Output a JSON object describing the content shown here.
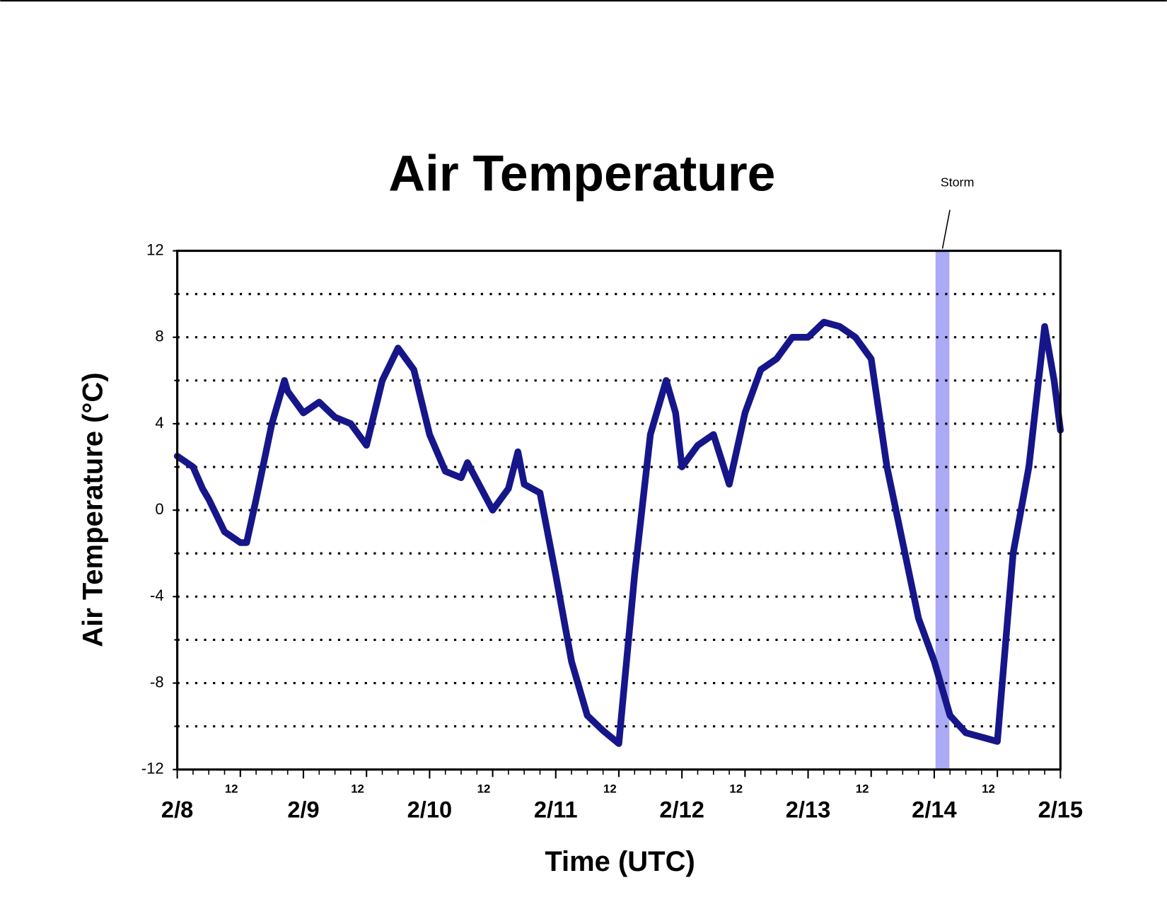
{
  "chart_data": {
    "type": "line",
    "title": "Air Temperature",
    "xlabel": "Time (UTC)",
    "ylabel": "Air Temperature (°C)",
    "color": "#16168a",
    "x": [
      0,
      0.125,
      0.2,
      0.25,
      0.375,
      0.5,
      0.55,
      0.625,
      0.75,
      0.85,
      0.875,
      1.0,
      1.125,
      1.25,
      1.375,
      1.5,
      1.625,
      1.75,
      1.875,
      2.0,
      2.125,
      2.25,
      2.3,
      2.5,
      2.625,
      2.7,
      2.75,
      2.875,
      3.0,
      3.125,
      3.25,
      3.375,
      3.5,
      3.625,
      3.75,
      3.875,
      3.95,
      4.0,
      4.125,
      4.25,
      4.375,
      4.5,
      4.625,
      4.75,
      4.875,
      5.0,
      5.125,
      5.25,
      5.375,
      5.5,
      5.625,
      5.75,
      5.875,
      6.0,
      6.125,
      6.25,
      6.375,
      6.5,
      6.625,
      6.75,
      6.875,
      6.95,
      7.0
    ],
    "values": [
      2.5,
      2.0,
      1.0,
      0.5,
      -1.0,
      -1.5,
      -1.5,
      0.5,
      4,
      6,
      5.5,
      4.5,
      5,
      4.3,
      4,
      3,
      6,
      7.5,
      6.5,
      3.5,
      1.8,
      1.5,
      2.2,
      0,
      1.0,
      2.7,
      1.2,
      0.8,
      -3,
      -7,
      -9.5,
      -10.2,
      -10.8,
      -3,
      3.5,
      6,
      4.5,
      2,
      3,
      3.5,
      1.2,
      4.5,
      6.5,
      7,
      8,
      8,
      8.7,
      8.5,
      8,
      7,
      2,
      -1.5,
      -5,
      -7,
      -9.5,
      -10.3,
      -10.5,
      -10.7,
      -2,
      2,
      8.5,
      6,
      3.7
    ],
    "xlim": [
      0,
      7
    ],
    "xticks": [
      {
        "value": 0,
        "label": "2/8"
      },
      {
        "value": 1,
        "label": "2/9"
      },
      {
        "value": 2,
        "label": "2/10"
      },
      {
        "value": 3,
        "label": "2/11"
      },
      {
        "value": 4,
        "label": "2/12"
      },
      {
        "value": 5,
        "label": "2/13"
      },
      {
        "value": 6,
        "label": "2/14"
      },
      {
        "value": 7,
        "label": "2/15"
      }
    ],
    "xticks_noon": [
      {
        "value": 0.5,
        "label": "12"
      },
      {
        "value": 1.5,
        "label": "12"
      },
      {
        "value": 2.5,
        "label": "12"
      },
      {
        "value": 3.5,
        "label": "12"
      },
      {
        "value": 4.5,
        "label": "12"
      },
      {
        "value": 5.5,
        "label": "12"
      },
      {
        "value": 6.5,
        "label": "12"
      }
    ],
    "xminorticks": [
      0.125,
      0.25,
      0.375,
      0.625,
      0.75,
      0.875,
      1.125,
      1.25,
      1.375,
      1.625,
      1.75,
      1.875,
      2.125,
      2.25,
      2.375,
      2.625,
      2.75,
      2.875,
      3.125,
      3.25,
      3.375,
      3.625,
      3.75,
      3.875,
      4.125,
      4.25,
      4.375,
      4.625,
      4.75,
      4.875,
      5.125,
      5.25,
      5.375,
      5.625,
      5.75,
      5.875,
      6.125,
      6.25,
      6.375,
      6.625,
      6.75,
      6.875
    ],
    "ylim": [
      -12,
      12
    ],
    "yticks": [
      -12,
      -8,
      -4,
      0,
      4,
      8,
      12
    ],
    "yminorticks": [
      -10,
      -6,
      -2,
      2,
      6,
      10
    ],
    "grid": true,
    "annotations": [
      {
        "text": "Storm",
        "x": [
          6.01,
          6.12
        ],
        "color": "#aaaaf5"
      }
    ]
  }
}
